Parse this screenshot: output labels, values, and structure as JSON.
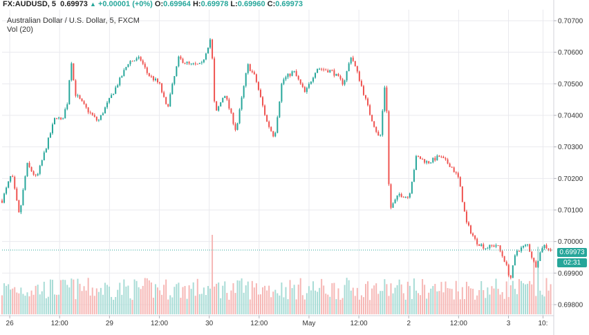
{
  "header": {
    "symbol": "FX:AUDUSD, 5",
    "last": "0.69973",
    "change": "+0.00001 (+0%)",
    "o_label": "O:",
    "o_value": "0.69964",
    "h_label": "H:",
    "h_value": "0.69978",
    "l_label": "L:",
    "l_value": "0.69960",
    "c_label": "C:",
    "c_value": "0.69973",
    "subtitle": "Australian Dollar / U.S. Dollar, 5, FXCM",
    "volume_label": "Vol (20)"
  },
  "price_tag": "0.69973",
  "countdown_tag": "02:31",
  "colors": {
    "up": "#26a69a",
    "down": "#ef5350",
    "grid": "#e9e9ee",
    "vol_up": "#a8dcd6",
    "vol_down": "#f6b7b5",
    "price_line": "#26a69a"
  },
  "chart_data": {
    "type": "candlestick",
    "symbol": "FX:AUDUSD",
    "interval": "5",
    "ylim": [
      0.69765,
      0.70735
    ],
    "y_ticks": [
      "0.70700",
      "0.70600",
      "0.70500",
      "0.70400",
      "0.70300",
      "0.70200",
      "0.70100",
      "0.70000",
      "0.69900",
      "0.69800"
    ],
    "y_tick_values": [
      0.707,
      0.706,
      0.705,
      0.704,
      0.703,
      0.702,
      0.701,
      0.7,
      0.699,
      0.698
    ],
    "x_ticks": [
      {
        "label": "26",
        "t": 0.2
      },
      {
        "label": "12:00",
        "t": 1.5
      },
      {
        "label": "29",
        "t": 2.8
      },
      {
        "label": "12:00",
        "t": 4.1
      },
      {
        "label": "30",
        "t": 5.4
      },
      {
        "label": "12:00",
        "t": 6.7
      },
      {
        "label": "May",
        "t": 8.0
      },
      {
        "label": "12:00",
        "t": 9.3
      },
      {
        "label": "2",
        "t": 10.6
      },
      {
        "label": "12:00",
        "t": 11.9
      },
      {
        "label": "3",
        "t": 13.2
      },
      {
        "label": "10:",
        "t": 14.1
      }
    ],
    "xlim": [
      0,
      14.38
    ],
    "current_price": 0.69973,
    "grid": true,
    "price_path": [
      [
        0.0,
        0.7013
      ],
      [
        0.25,
        0.70215
      ],
      [
        0.45,
        0.7008
      ],
      [
        0.65,
        0.70245
      ],
      [
        0.9,
        0.702
      ],
      [
        1.2,
        0.7032
      ],
      [
        1.4,
        0.704
      ],
      [
        1.55,
        0.7038
      ],
      [
        1.7,
        0.7044
      ],
      [
        1.8,
        0.7058
      ],
      [
        1.9,
        0.7047
      ],
      [
        2.2,
        0.7042
      ],
      [
        2.5,
        0.7038
      ],
      [
        2.8,
        0.7045
      ],
      [
        3.1,
        0.7052
      ],
      [
        3.3,
        0.7057
      ],
      [
        3.6,
        0.7058
      ],
      [
        3.8,
        0.7053
      ],
      [
        4.1,
        0.705
      ],
      [
        4.3,
        0.7042
      ],
      [
        4.6,
        0.7058
      ],
      [
        4.9,
        0.7056
      ],
      [
        5.2,
        0.7056
      ],
      [
        5.45,
        0.7065
      ],
      [
        5.55,
        0.704
      ],
      [
        5.8,
        0.7047
      ],
      [
        6.1,
        0.7035
      ],
      [
        6.4,
        0.7056
      ],
      [
        6.6,
        0.7052
      ],
      [
        6.9,
        0.7038
      ],
      [
        7.1,
        0.7033
      ],
      [
        7.3,
        0.7051
      ],
      [
        7.6,
        0.7054
      ],
      [
        7.9,
        0.7047
      ],
      [
        8.2,
        0.7055
      ],
      [
        8.6,
        0.7054
      ],
      [
        8.9,
        0.705
      ],
      [
        9.1,
        0.7059
      ],
      [
        9.3,
        0.7052
      ],
      [
        9.6,
        0.704
      ],
      [
        9.85,
        0.7032
      ],
      [
        10.0,
        0.7053
      ],
      [
        10.1,
        0.701
      ],
      [
        10.35,
        0.7015
      ],
      [
        10.6,
        0.7014
      ],
      [
        10.8,
        0.7027
      ],
      [
        11.1,
        0.7025
      ],
      [
        11.4,
        0.7027
      ],
      [
        11.7,
        0.7024
      ],
      [
        11.9,
        0.702
      ],
      [
        12.1,
        0.7006
      ],
      [
        12.35,
        0.7
      ],
      [
        12.6,
        0.6998
      ],
      [
        12.9,
        0.6999
      ],
      [
        13.1,
        0.6994
      ],
      [
        13.25,
        0.6988
      ],
      [
        13.4,
        0.6997
      ],
      [
        13.7,
        0.6999
      ],
      [
        13.9,
        0.6992
      ],
      [
        14.1,
        0.6999
      ],
      [
        14.3,
        0.69973
      ]
    ],
    "volume_spikes": [
      [
        5.5,
        1.0
      ],
      [
        13.95,
        0.85
      ],
      [
        13.85,
        0.7
      ],
      [
        1.8,
        0.45
      ],
      [
        5.65,
        0.4
      ],
      [
        6.9,
        0.3
      ],
      [
        12.55,
        0.3
      ]
    ]
  }
}
